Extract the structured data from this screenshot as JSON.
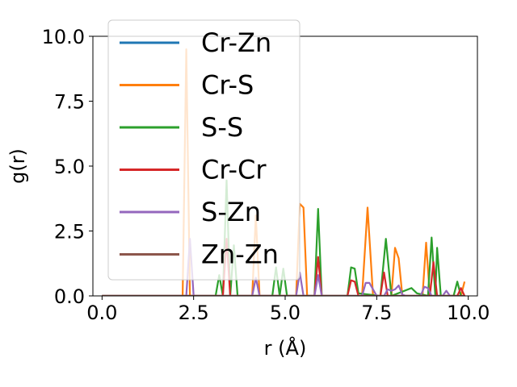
{
  "chart_data": {
    "type": "line",
    "xlabel": "r (Å)",
    "ylabel": "g(r)",
    "xlim": [
      -0.25,
      10.25
    ],
    "ylim": [
      0,
      10
    ],
    "xticks": [
      0.0,
      2.5,
      5.0,
      7.5,
      10.0
    ],
    "xtick_labels": [
      "0.0",
      "2.5",
      "5.0",
      "7.5",
      "10.0"
    ],
    "yticks": [
      0.0,
      2.5,
      5.0,
      7.5,
      10.0
    ],
    "ytick_labels": [
      "0.0",
      "2.5",
      "5.0",
      "7.5",
      "10.0"
    ],
    "grid": false,
    "legend_position": "upper-left",
    "series": [
      {
        "name": "Cr-Zn",
        "color": "#1f77b4",
        "points": [
          [
            0,
            0
          ],
          [
            9.9,
            0
          ]
        ]
      },
      {
        "name": "Cr-S",
        "color": "#ff7f0e",
        "points": [
          [
            0,
            0
          ],
          [
            2.2,
            0
          ],
          [
            2.3,
            9.5
          ],
          [
            2.4,
            0
          ],
          [
            4.1,
            0
          ],
          [
            4.2,
            3.1
          ],
          [
            4.3,
            0
          ],
          [
            5.3,
            0
          ],
          [
            5.4,
            3.55
          ],
          [
            5.5,
            3.4
          ],
          [
            5.6,
            0
          ],
          [
            7.1,
            0
          ],
          [
            7.25,
            3.4
          ],
          [
            7.4,
            0
          ],
          [
            7.9,
            0
          ],
          [
            8.0,
            1.85
          ],
          [
            8.1,
            1.45
          ],
          [
            8.2,
            0
          ],
          [
            8.75,
            0
          ],
          [
            8.85,
            2.05
          ],
          [
            8.95,
            0
          ],
          [
            9.8,
            0
          ],
          [
            9.9,
            0.55
          ]
        ]
      },
      {
        "name": "S-S",
        "color": "#2ca02c",
        "points": [
          [
            0,
            0
          ],
          [
            3.1,
            0
          ],
          [
            3.2,
            0.8
          ],
          [
            3.3,
            0
          ],
          [
            3.4,
            4.45
          ],
          [
            3.5,
            0
          ],
          [
            3.6,
            1.95
          ],
          [
            3.7,
            0
          ],
          [
            4.65,
            0
          ],
          [
            4.75,
            1.1
          ],
          [
            4.85,
            0
          ],
          [
            4.95,
            1.05
          ],
          [
            5.05,
            0
          ],
          [
            5.8,
            0
          ],
          [
            5.9,
            3.35
          ],
          [
            6.0,
            0
          ],
          [
            6.7,
            0
          ],
          [
            6.8,
            1.1
          ],
          [
            6.9,
            1.05
          ],
          [
            7.0,
            0.1
          ],
          [
            7.6,
            0
          ],
          [
            7.75,
            2.2
          ],
          [
            7.9,
            0
          ],
          [
            8.45,
            0.3
          ],
          [
            8.6,
            0.1
          ],
          [
            8.9,
            0
          ],
          [
            9.0,
            2.25
          ],
          [
            9.1,
            0
          ],
          [
            9.15,
            1.85
          ],
          [
            9.25,
            0
          ],
          [
            9.6,
            0
          ],
          [
            9.7,
            0.55
          ],
          [
            9.8,
            0
          ]
        ]
      },
      {
        "name": "Cr-Cr",
        "color": "#d62728",
        "points": [
          [
            0,
            0
          ],
          [
            3.3,
            0
          ],
          [
            3.4,
            2.2
          ],
          [
            3.5,
            0
          ],
          [
            5.8,
            0
          ],
          [
            5.9,
            1.5
          ],
          [
            6.0,
            0
          ],
          [
            6.7,
            0
          ],
          [
            6.8,
            0.6
          ],
          [
            6.9,
            0.55
          ],
          [
            7.0,
            0
          ],
          [
            7.6,
            0
          ],
          [
            7.7,
            0.9
          ],
          [
            7.8,
            0
          ],
          [
            8.95,
            0
          ],
          [
            9.05,
            1.3
          ],
          [
            9.15,
            0
          ],
          [
            9.7,
            0
          ],
          [
            9.8,
            0.3
          ],
          [
            9.9,
            0
          ]
        ]
      },
      {
        "name": "S-Zn",
        "color": "#9467bd",
        "points": [
          [
            0,
            0
          ],
          [
            2.3,
            0
          ],
          [
            2.4,
            2.2
          ],
          [
            2.5,
            0
          ],
          [
            4.1,
            0
          ],
          [
            4.2,
            0.7
          ],
          [
            4.3,
            0
          ],
          [
            5.3,
            0
          ],
          [
            5.4,
            0.9
          ],
          [
            5.5,
            0
          ],
          [
            5.8,
            0
          ],
          [
            5.9,
            0.8
          ],
          [
            6.0,
            0
          ],
          [
            7.1,
            0
          ],
          [
            7.2,
            0.5
          ],
          [
            7.3,
            0.5
          ],
          [
            7.4,
            0.25
          ],
          [
            7.5,
            0
          ],
          [
            7.7,
            0
          ],
          [
            7.8,
            0.25
          ],
          [
            7.9,
            0.2
          ],
          [
            8.0,
            0.25
          ],
          [
            8.1,
            0.4
          ],
          [
            8.2,
            0.05
          ],
          [
            8.3,
            0
          ],
          [
            8.7,
            0
          ],
          [
            8.8,
            0.35
          ],
          [
            8.9,
            0.3
          ],
          [
            9.0,
            0
          ],
          [
            9.3,
            0
          ],
          [
            9.4,
            0.2
          ],
          [
            9.5,
            0
          ]
        ]
      },
      {
        "name": "Zn-Zn",
        "color": "#8c564b",
        "points": [
          [
            0,
            0
          ],
          [
            9.9,
            0
          ]
        ]
      }
    ]
  }
}
